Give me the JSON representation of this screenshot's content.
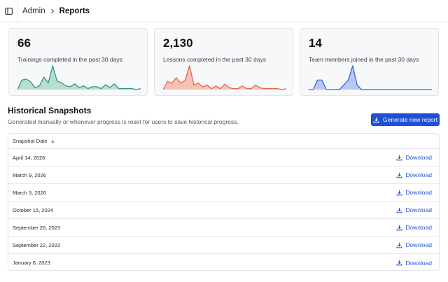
{
  "breadcrumb": {
    "parent": "Admin",
    "current": "Reports"
  },
  "stats": [
    {
      "value": "66",
      "label": "Trainings completed in the past 30 days",
      "color": "#2e9a7f",
      "fill": "#b9ddd2",
      "series": [
        0,
        10,
        11,
        8,
        2,
        4,
        13,
        7,
        25,
        9,
        7,
        4,
        3,
        6,
        2,
        4,
        1,
        3,
        3,
        1,
        5,
        2,
        6,
        1,
        1,
        1,
        1,
        0,
        1
      ]
    },
    {
      "value": "2,130",
      "label": "Lessons completed in the past 30 days",
      "color": "#e0674e",
      "fill": "#f6c4b6",
      "series": [
        0,
        9,
        7,
        13,
        7,
        10,
        26,
        5,
        7,
        3,
        5,
        1,
        4,
        1,
        6,
        2,
        1,
        1,
        4,
        1,
        1,
        5,
        2,
        1,
        1,
        1,
        1,
        0,
        1
      ]
    },
    {
      "value": "14",
      "label": "Team members joined in the past 30 days",
      "color": "#3d63d6",
      "fill": "#b9c8ef",
      "series": [
        0,
        0,
        2,
        2,
        0,
        0,
        0,
        0,
        1,
        2,
        5,
        1,
        0,
        0,
        0,
        0,
        0,
        0,
        0,
        0,
        0,
        0,
        0,
        0,
        0,
        0,
        0,
        0,
        0
      ]
    }
  ],
  "section": {
    "title": "Historical Snapshots",
    "subtitle": "Generated manually or whenever progress is reset for users to save historical progress.",
    "button_label": "Generate new report"
  },
  "table": {
    "header": "Snapshot Date",
    "download_label": "Download",
    "rows": [
      {
        "date": "April 14, 2026"
      },
      {
        "date": "March 9, 2026"
      },
      {
        "date": "March 3, 2026"
      },
      {
        "date": "October 15, 2024"
      },
      {
        "date": "September 26, 2023"
      },
      {
        "date": "September 22, 2023"
      },
      {
        "date": "January 6, 2023"
      }
    ]
  },
  "icons": {
    "sidebar": "sidebar-toggle-icon",
    "chevron": "chevron-right-icon",
    "download": "download-icon",
    "sort": "arrow-down-icon"
  }
}
